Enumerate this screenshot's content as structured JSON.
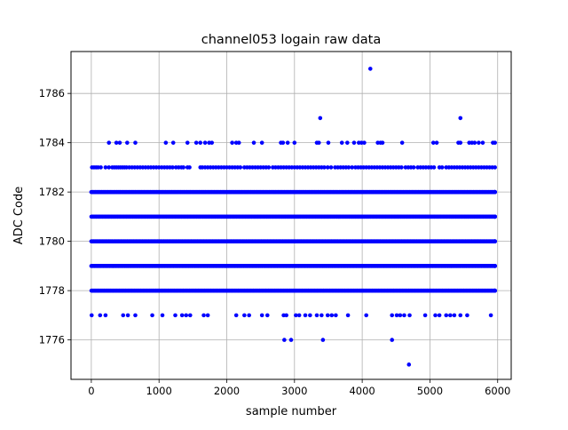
{
  "chart_data": {
    "type": "scatter",
    "title": "channel053 logain raw data",
    "xlabel": "sample number",
    "ylabel": "ADC Code",
    "xlim": [
      -300,
      6200
    ],
    "ylim": [
      1774.4,
      1787.7
    ],
    "xticks": [
      0,
      1000,
      2000,
      3000,
      4000,
      5000,
      6000
    ],
    "xtick_labels": [
      "0",
      "1000",
      "2000",
      "3000",
      "4000",
      "5000",
      "6000"
    ],
    "yticks": [
      1776,
      1778,
      1780,
      1782,
      1784,
      1786
    ],
    "ytick_labels": [
      "1776",
      "1778",
      "1780",
      "1782",
      "1784",
      "1786"
    ],
    "grid": true,
    "marker_color": "#0000ff",
    "sample_count": 6000,
    "dense_levels": [
      1778,
      1779,
      1780,
      1781,
      1782
    ],
    "sparse_points": [
      {
        "y": 1783,
        "x": [
          10,
          40,
          70,
          100,
          140,
          210,
          260,
          310,
          340,
          370,
          400,
          430,
          460,
          490,
          520,
          560,
          600,
          640,
          680,
          720,
          760,
          800,
          840,
          880,
          920,
          960,
          1000,
          1040,
          1080,
          1120,
          1160,
          1200,
          1250,
          1290,
          1330,
          1360,
          1420,
          1450,
          1610,
          1640,
          1680,
          1720,
          1760,
          1800,
          1840,
          1880,
          1920,
          1960,
          2000,
          2040,
          2080,
          2120,
          2160,
          2200,
          2260,
          2300,
          2340,
          2380,
          2420,
          2460,
          2500,
          2540,
          2580,
          2620,
          2680,
          2720,
          2760,
          2800,
          2840,
          2880,
          2920,
          2960,
          3000,
          3040,
          3080,
          3120,
          3160,
          3200,
          3240,
          3280,
          3320,
          3360,
          3400,
          3440,
          3490,
          3540,
          3600,
          3640,
          3680,
          3720,
          3760,
          3800,
          3850,
          3900,
          3940,
          3980,
          4020,
          4060,
          4100,
          4140,
          4180,
          4220,
          4260,
          4300,
          4340,
          4380,
          4420,
          4460,
          4500,
          4540,
          4580,
          4640,
          4680,
          4720,
          4760,
          4820,
          4860,
          4900,
          4940,
          4980,
          5020,
          5060,
          5140,
          5180,
          5240,
          5280,
          5320,
          5360,
          5400,
          5440,
          5480,
          5520,
          5560,
          5600,
          5640,
          5680,
          5720,
          5760,
          5800,
          5840,
          5880,
          5920,
          5960
        ]
      },
      {
        "y": 1784,
        "x": [
          260,
          370,
          420,
          530,
          650,
          1100,
          1210,
          1420,
          1550,
          1610,
          1680,
          1740,
          1780,
          2080,
          2140,
          2180,
          2400,
          2520,
          2800,
          2830,
          2900,
          3000,
          3330,
          3360,
          3500,
          3700,
          3780,
          3880,
          3950,
          3990,
          4030,
          4230,
          4270,
          4300,
          4590,
          5050,
          5100,
          5420,
          5450,
          5580,
          5620,
          5660,
          5720,
          5780,
          5930,
          5960
        ]
      },
      {
        "y": 1785,
        "x": [
          3380,
          5450
        ]
      },
      {
        "y": 1787,
        "x": [
          4120
        ]
      },
      {
        "y": 1777,
        "x": [
          5,
          130,
          210,
          470,
          540,
          650,
          900,
          1050,
          1240,
          1340,
          1400,
          1460,
          1660,
          1720,
          2140,
          2260,
          2330,
          2520,
          2600,
          2840,
          2880,
          3020,
          3070,
          3160,
          3230,
          3330,
          3400,
          3490,
          3550,
          3610,
          3790,
          4060,
          4440,
          4510,
          4560,
          4620,
          4700,
          4930,
          5080,
          5140,
          5240,
          5300,
          5360,
          5450,
          5550,
          5900
        ]
      },
      {
        "y": 1776,
        "x": [
          2850,
          2950,
          3420,
          4440
        ]
      },
      {
        "y": 1775,
        "x": [
          4690
        ]
      }
    ]
  }
}
